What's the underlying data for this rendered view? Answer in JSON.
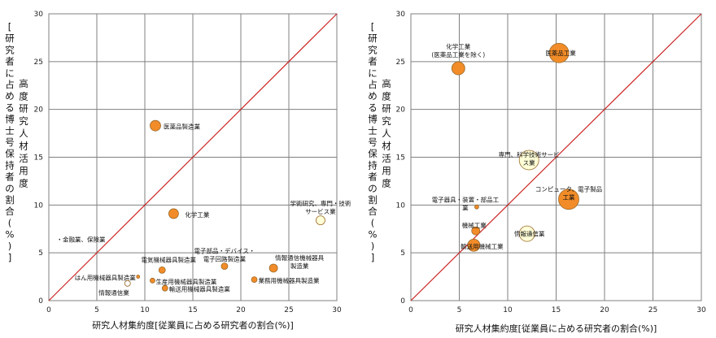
{
  "chart_data": [
    {
      "type": "scatter",
      "title": "",
      "xlabel": "研究人材集約度[従業員に占める研究者の割合(%)]",
      "ylabel_main": "高度研究人材活用度",
      "ylabel_sub": "[研究者に占める博士号保持者の割合(%)]",
      "xlim": [
        0,
        30
      ],
      "ylim": [
        0,
        30
      ],
      "x_ticks": [
        "0",
        "5",
        "10",
        "15",
        "20",
        "25",
        "30"
      ],
      "y_ticks": [
        "0",
        "5",
        "10",
        "15",
        "20",
        "25",
        "30"
      ],
      "grid": true,
      "diagonal": true,
      "points": [
        {
          "label": "医薬品製造業",
          "x": 11.1,
          "y": 18.3,
          "size": 13,
          "color": "#f28c28"
        },
        {
          "label": "化学工業",
          "x": 13.0,
          "y": 9.1,
          "size": 12,
          "color": "#f28c28"
        },
        {
          "label": "学術研究、専門・技術サービス業",
          "x": 28.3,
          "y": 8.4,
          "size": 11,
          "color": "#ffffd8"
        },
        {
          "label": "金融業、保険業",
          "x": 0.3,
          "y": 6.5,
          "size": 2,
          "color": "#f28c28"
        },
        {
          "label": "電子部品・デバイス・電子回路製造業",
          "x": 18.3,
          "y": 3.6,
          "size": 8,
          "color": "#f28c28"
        },
        {
          "label": "情報通信機械器具製造業",
          "x": 23.4,
          "y": 3.4,
          "size": 10,
          "color": "#f28c28"
        },
        {
          "label": "電気機械器具製造業",
          "x": 11.8,
          "y": 3.2,
          "size": 8,
          "color": "#f28c28"
        },
        {
          "label": "はん用機械器具製造業",
          "x": 9.3,
          "y": 2.5,
          "size": 4,
          "color": "#f28c28"
        },
        {
          "label": "生産用機械器具製造業",
          "x": 10.8,
          "y": 2.1,
          "size": 6,
          "color": "#f28c28"
        },
        {
          "label": "情報通信業",
          "x": 8.2,
          "y": 1.8,
          "size": 7,
          "color": "#ffffff"
        },
        {
          "label": "業務用機械器具製造業",
          "x": 21.4,
          "y": 2.2,
          "size": 7,
          "color": "#f28c28"
        },
        {
          "label": "輸送用機械器具製造業",
          "x": 12.1,
          "y": 1.3,
          "size": 7,
          "color": "#f28c28"
        }
      ]
    },
    {
      "type": "scatter",
      "title": "",
      "xlabel": "研究人材集約度[従業員に占める研究者の割合(%)]",
      "ylabel_main": "高度研究人材活用度",
      "ylabel_sub": "[研究者に占める博士号保持者の割合(%)]",
      "xlim": [
        0,
        30
      ],
      "ylim": [
        0,
        30
      ],
      "x_ticks": [
        "0",
        "5",
        "10",
        "15",
        "20",
        "25",
        "30"
      ],
      "y_ticks": [
        "0",
        "5",
        "10",
        "15",
        "20",
        "25",
        "30"
      ],
      "grid": true,
      "diagonal": true,
      "points": [
        {
          "label": "医薬品工業",
          "x": 15.3,
          "y": 25.9,
          "size": 24,
          "color": "#f28c28"
        },
        {
          "label": "化学工業(医薬品工業を除く)",
          "x": 4.9,
          "y": 24.3,
          "size": 16,
          "color": "#f28c28"
        },
        {
          "label": "専門、科学技術サービス業",
          "x": 12.2,
          "y": 14.7,
          "size": 24,
          "color": "#ffffd8"
        },
        {
          "label": "コンピュータ、電子製品工業",
          "x": 16.3,
          "y": 10.6,
          "size": 25,
          "color": "#f28c28"
        },
        {
          "label": "電子器具・装置・部品工業",
          "x": 6.8,
          "y": 9.8,
          "size": 5,
          "color": "#f28c28"
        },
        {
          "label": "機械工業",
          "x": 6.7,
          "y": 7.3,
          "size": 10,
          "color": "#f28c28"
        },
        {
          "label": "情報通信業",
          "x": 12.0,
          "y": 7.0,
          "size": 19,
          "color": "#ffffd8"
        },
        {
          "label": "輸送用機械工業",
          "x": 6.5,
          "y": 5.8,
          "size": 15,
          "color": "#f28c28"
        }
      ]
    }
  ]
}
